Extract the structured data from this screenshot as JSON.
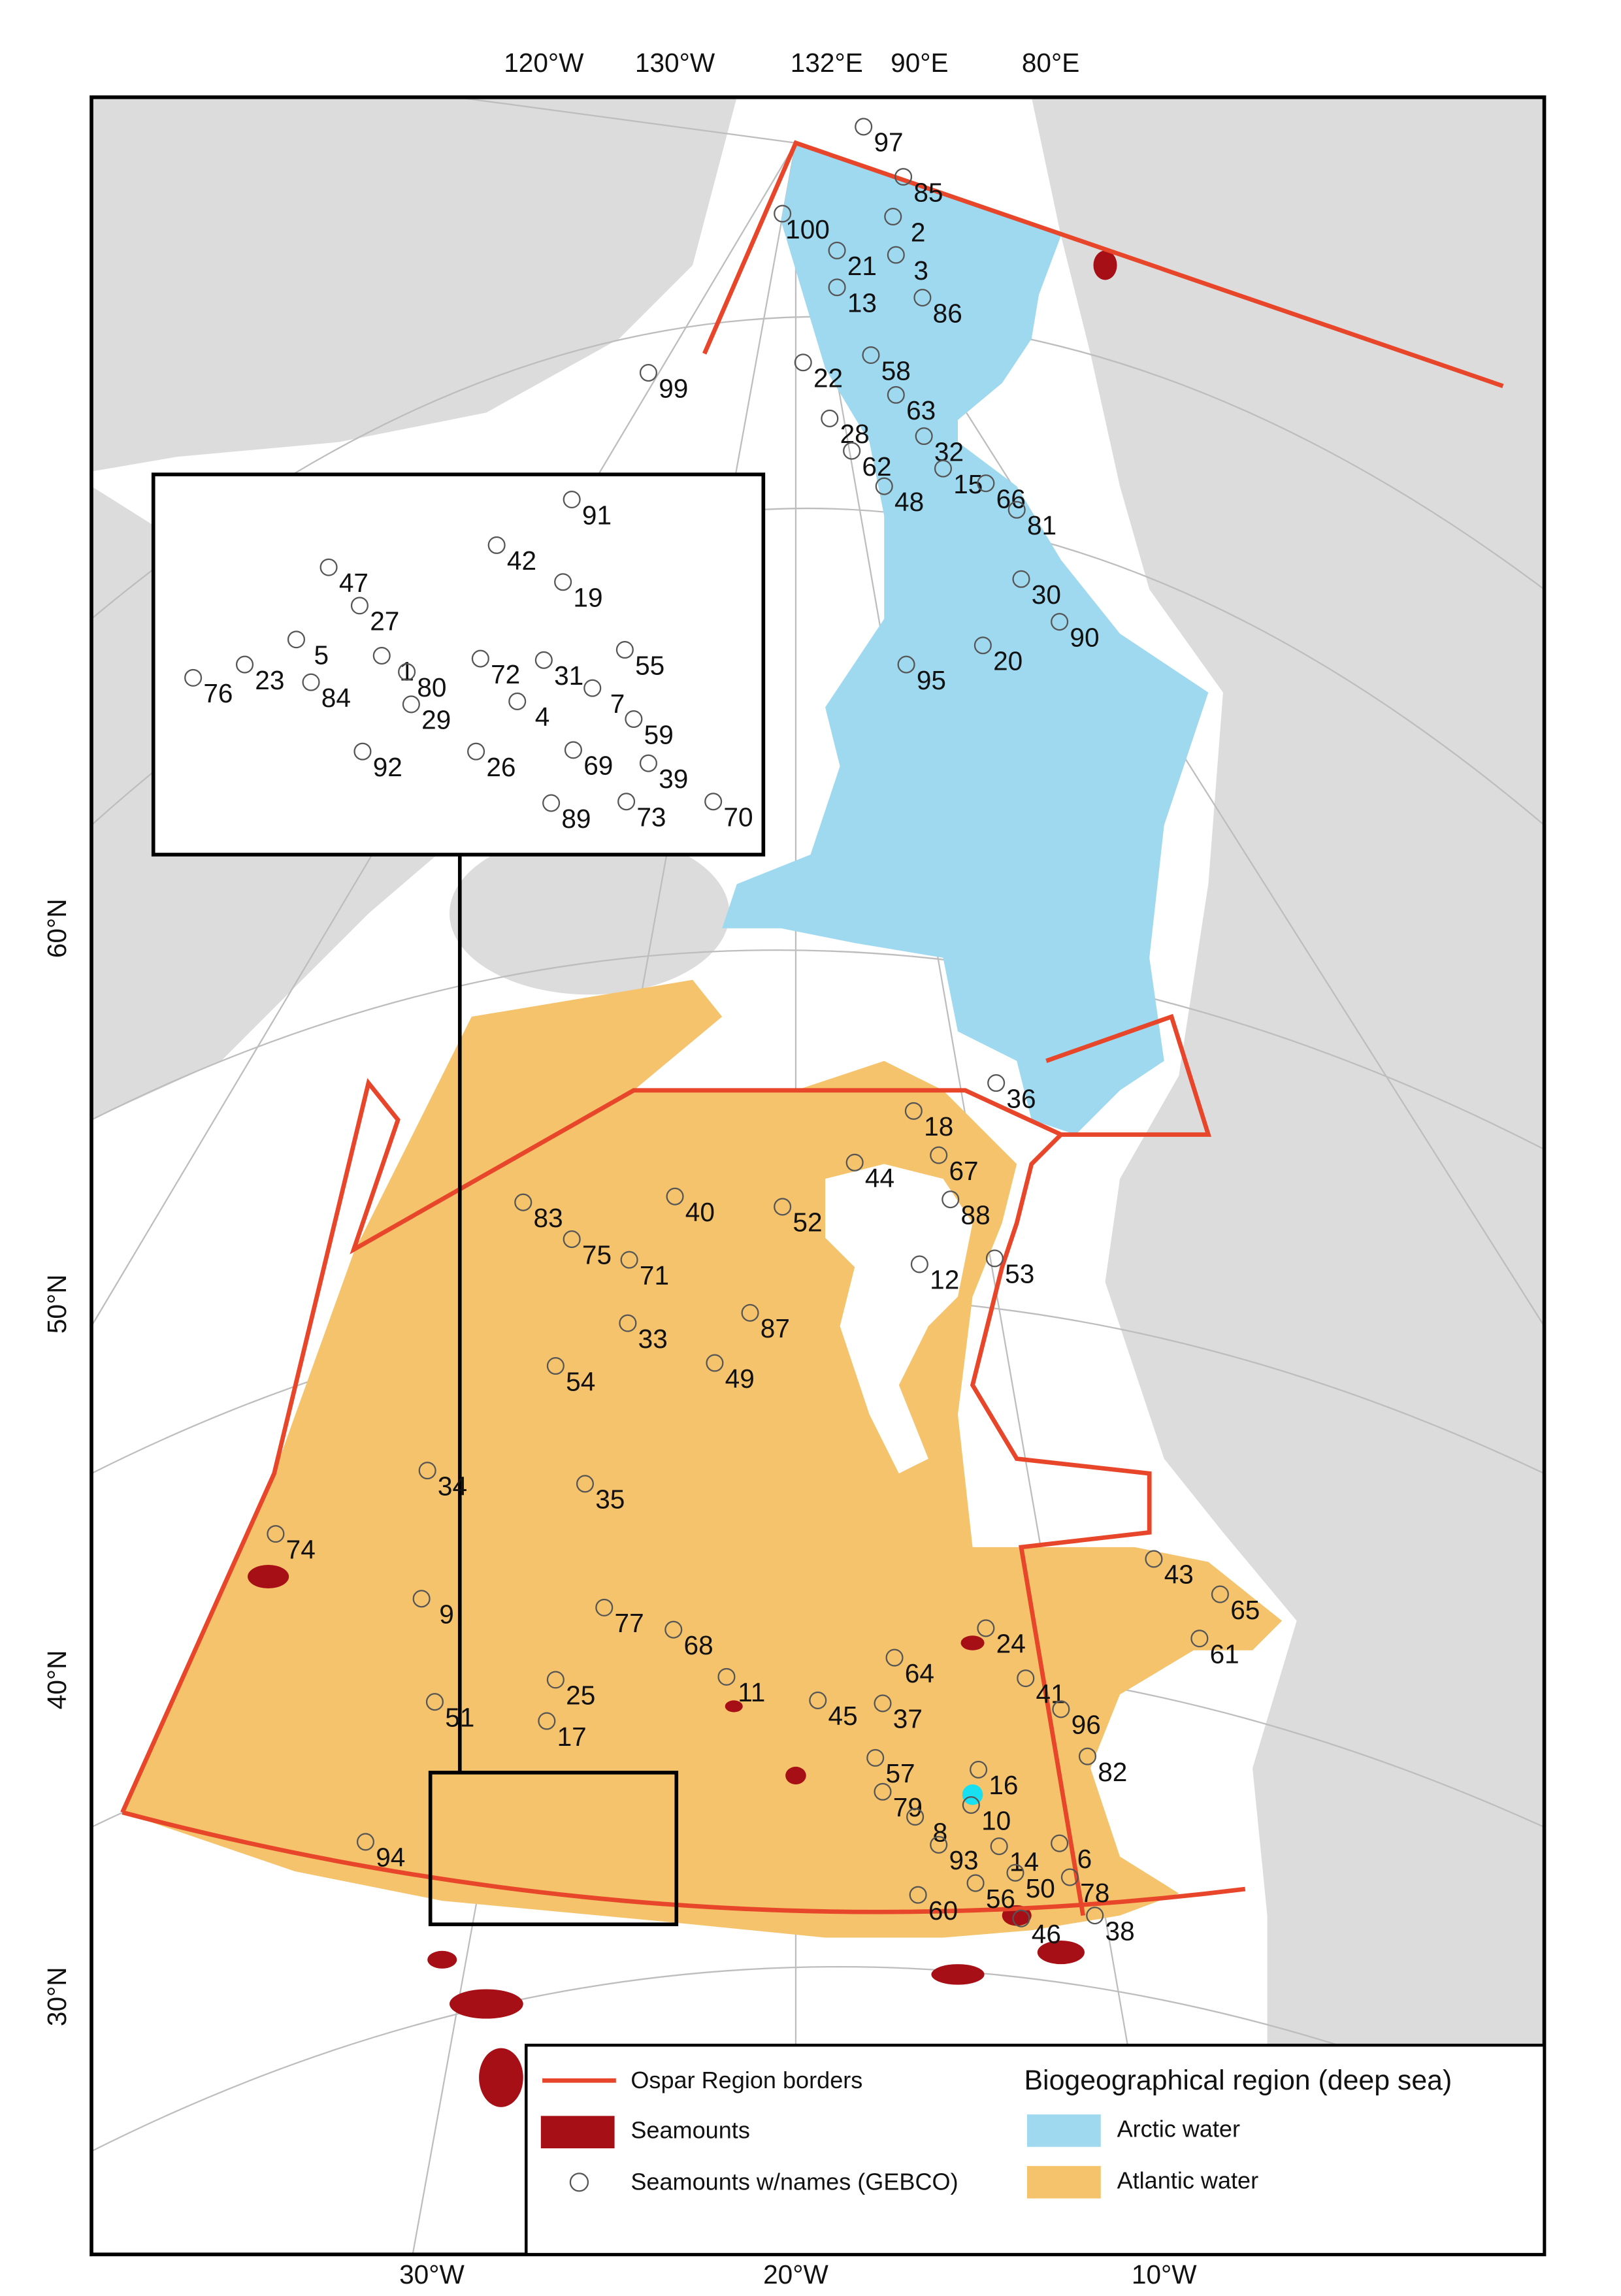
{
  "map": {
    "top_labels": [
      "120°W",
      "130°W",
      "132°E",
      "90°E",
      "80°E"
    ],
    "bottom_labels": [
      "30°W",
      "20°W",
      "10°W"
    ],
    "left_labels": [
      "60°N",
      "50°N",
      "40°N",
      "30°N"
    ],
    "seamount_labels": [
      "97",
      "85",
      "100",
      "2",
      "21",
      "3",
      "13",
      "86",
      "99",
      "22",
      "58",
      "63",
      "28",
      "32",
      "62",
      "15",
      "48",
      "66",
      "81",
      "30",
      "90",
      "20",
      "95",
      "36",
      "18",
      "44",
      "67",
      "52",
      "88",
      "83",
      "40",
      "75",
      "71",
      "12",
      "53",
      "33",
      "87",
      "49",
      "54",
      "34",
      "35",
      "74",
      "43",
      "65",
      "61",
      "9",
      "77",
      "68",
      "24",
      "64",
      "11",
      "41",
      "25",
      "45",
      "51",
      "37",
      "96",
      "17",
      "57",
      "82",
      "16",
      "79",
      "10",
      "8",
      "93",
      "6",
      "94",
      "14",
      "50",
      "78",
      "56",
      "60",
      "38",
      "46"
    ],
    "inset_labels": [
      "91",
      "42",
      "19",
      "47",
      "27",
      "5",
      "55",
      "23",
      "84",
      "1",
      "80",
      "72",
      "31",
      "7",
      "76",
      "29",
      "4",
      "59",
      "92",
      "26",
      "69",
      "39",
      "70",
      "89",
      "73"
    ],
    "legend": {
      "items": [
        "Ospar Region borders",
        "Seamounts",
        "Seamounts w/names (GEBCO)"
      ],
      "title": "Biogeographical region (deep sea)",
      "regions": [
        "Arctic water",
        "Atlantic water"
      ]
    }
  }
}
